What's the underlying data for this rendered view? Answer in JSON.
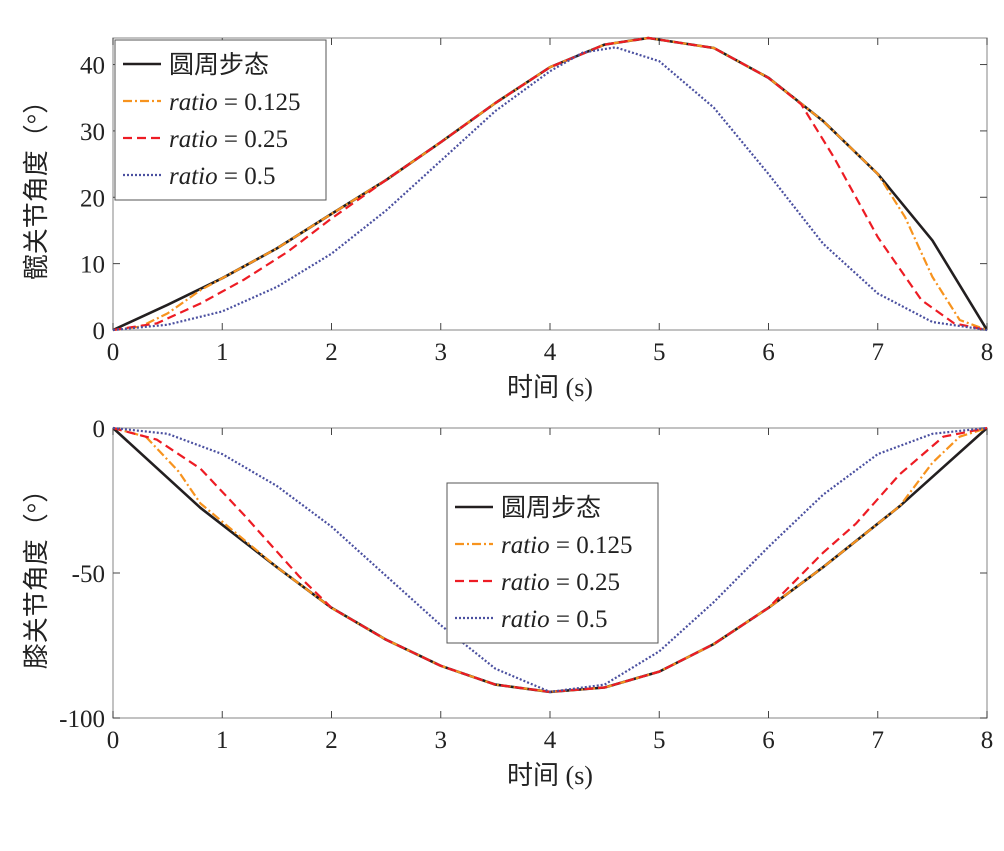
{
  "chart_data": [
    {
      "type": "line",
      "title": "",
      "xlabel": "时间 (s)",
      "ylabel": "髋关节角度（°）",
      "xlim": [
        0,
        8
      ],
      "ylim": [
        0,
        44
      ],
      "xticks": [
        "0",
        "1",
        "2",
        "3",
        "4",
        "5",
        "6",
        "7",
        "8"
      ],
      "yticks": [
        "0",
        "10",
        "20",
        "30",
        "40"
      ],
      "grid": false,
      "legend_position": "top-left",
      "series": [
        {
          "name": "圆周步态",
          "color": "#231f20",
          "dash": "solid",
          "x": [
            0,
            0.5,
            1,
            1.5,
            2,
            2.5,
            3,
            3.5,
            4,
            4.5,
            4.9,
            5.5,
            6,
            6.5,
            7,
            7.5,
            8
          ],
          "y": [
            0,
            3.8,
            7.8,
            12.3,
            17.5,
            22.6,
            28.3,
            34.2,
            39.6,
            43.0,
            44.0,
            42.5,
            38.0,
            31.5,
            23.5,
            13.5,
            0
          ]
        },
        {
          "name": "ratio = 0.125",
          "color": "#f7931e",
          "dash": "dashdot",
          "x": [
            0,
            0.25,
            0.5,
            0.8,
            1,
            1.5,
            2,
            2.5,
            3,
            3.5,
            4,
            4.5,
            4.9,
            5.5,
            6,
            6.5,
            7,
            7.25,
            7.5,
            7.75,
            8
          ],
          "y": [
            0,
            0.5,
            2.5,
            6.0,
            7.8,
            12.3,
            17.5,
            22.6,
            28.3,
            34.2,
            39.6,
            43.0,
            44.0,
            42.5,
            38.0,
            31.5,
            23.5,
            17.0,
            8.0,
            1.5,
            0
          ]
        },
        {
          "name": "ratio = 0.25",
          "color": "#ed1c24",
          "dash": "dashed",
          "x": [
            0,
            0.4,
            0.8,
            1.2,
            1.6,
            2,
            2.5,
            3,
            3.5,
            4,
            4.5,
            4.9,
            5.5,
            6,
            6.3,
            6.6,
            7,
            7.4,
            7.7,
            8
          ],
          "y": [
            0,
            1.0,
            4.0,
            7.6,
            11.8,
            16.8,
            22.6,
            28.3,
            34.2,
            39.6,
            43.0,
            44.0,
            42.5,
            38.0,
            34.0,
            26.0,
            14.0,
            4.5,
            1.0,
            0
          ]
        },
        {
          "name": "ratio = 0.5",
          "color": "#4b50a0",
          "dash": "dotted",
          "x": [
            0,
            0.5,
            1,
            1.5,
            2,
            2.5,
            3,
            3.5,
            4,
            4.3,
            4.6,
            5,
            5.5,
            6,
            6.5,
            7,
            7.5,
            8
          ],
          "y": [
            0,
            0.8,
            2.8,
            6.5,
            11.5,
            18.0,
            25.5,
            33.0,
            39.0,
            41.8,
            42.6,
            40.5,
            33.5,
            23.5,
            13.0,
            5.5,
            1.2,
            0
          ]
        }
      ]
    },
    {
      "type": "line",
      "title": "",
      "xlabel": "时间 (s)",
      "ylabel": "膝关节角度（°）",
      "xlim": [
        0,
        8
      ],
      "ylim": [
        -100,
        0
      ],
      "xticks": [
        "0",
        "1",
        "2",
        "3",
        "4",
        "5",
        "6",
        "7",
        "8"
      ],
      "yticks": [
        "-100",
        "-50",
        "0"
      ],
      "grid": false,
      "legend_position": "center",
      "series": [
        {
          "name": "圆周步态",
          "color": "#231f20",
          "dash": "solid",
          "x": [
            0,
            0.8,
            1.5,
            2,
            2.5,
            3,
            3.5,
            4,
            4.5,
            5,
            5.5,
            6,
            6.5,
            7.2,
            8
          ],
          "y": [
            0,
            -27.5,
            -48,
            -62,
            -73,
            -82,
            -88.5,
            -91,
            -89.5,
            -84,
            -74.5,
            -62,
            -48,
            -27,
            0
          ]
        },
        {
          "name": "ratio = 0.125",
          "color": "#f7931e",
          "dash": "dashdot",
          "x": [
            0,
            0.3,
            0.6,
            0.8,
            1.5,
            2,
            2.5,
            3,
            3.5,
            4,
            4.5,
            5,
            5.5,
            6,
            6.5,
            7,
            7.2,
            7.5,
            7.75,
            8
          ],
          "y": [
            0,
            -3,
            -15,
            -26,
            -48,
            -62,
            -73,
            -82,
            -88.5,
            -91,
            -89.5,
            -84,
            -74.5,
            -62,
            -48,
            -33,
            -27,
            -12,
            -3,
            0
          ]
        },
        {
          "name": "ratio = 0.25",
          "color": "#ed1c24",
          "dash": "dashed",
          "x": [
            0,
            0.4,
            0.8,
            1.2,
            1.7,
            2,
            2.5,
            3,
            3.5,
            4,
            4.5,
            5,
            5.5,
            6,
            6.5,
            6.8,
            7.2,
            7.6,
            8
          ],
          "y": [
            0,
            -4,
            -14,
            -30,
            -51,
            -62,
            -73,
            -82,
            -88.5,
            -91,
            -89.5,
            -84,
            -74.5,
            -62,
            -43,
            -33,
            -16,
            -3,
            0
          ]
        },
        {
          "name": "ratio = 0.5",
          "color": "#4b50a0",
          "dash": "dotted",
          "x": [
            0,
            0.5,
            1,
            1.5,
            2,
            2.5,
            3,
            3.5,
            4,
            4.5,
            5,
            5.5,
            6,
            6.5,
            7,
            7.5,
            8
          ],
          "y": [
            0,
            -2,
            -9,
            -20,
            -34,
            -51,
            -68,
            -83,
            -91,
            -88.5,
            -77,
            -60,
            -41,
            -23,
            -9,
            -2,
            0
          ]
        }
      ]
    }
  ]
}
